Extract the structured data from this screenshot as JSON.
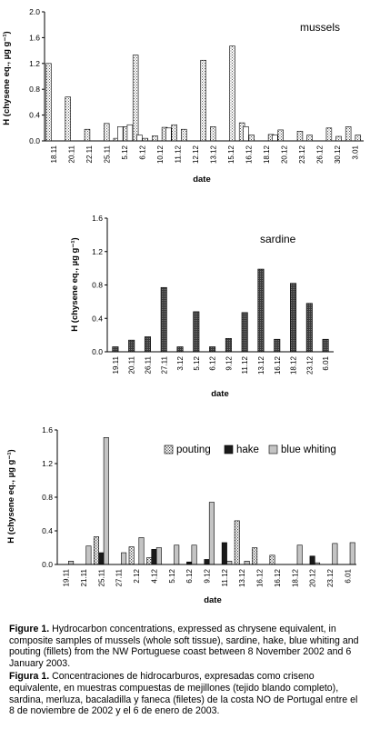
{
  "colors": {
    "background": "#ffffff",
    "axis": "#000000",
    "bar_stroke": "#000000"
  },
  "chart_data": [
    {
      "type": "bar",
      "title": "mussels",
      "xlabel": "date",
      "ylabel": "H (chysene eq., µg g⁻¹)",
      "ylim": [
        0,
        2.0
      ],
      "yticks": [
        "0.0",
        "0.4",
        "0.8",
        "1.2",
        "1.6",
        "2.0"
      ],
      "ytick_values": [
        0,
        0.4,
        0.8,
        1.2,
        1.6,
        2.0
      ],
      "xtick_labels": [
        "18.11",
        "20.11",
        "22.11",
        "25.11",
        "5.12",
        "6.12",
        "10.12",
        "11.12",
        "12.12",
        "13.12",
        "15.12",
        "16.12",
        "18.12",
        "20.12",
        "23.12",
        "26.12",
        "30.12",
        "3.01"
      ],
      "series": [
        {
          "fill": "dots",
          "values": [
            1.2,
            0,
            0.68,
            0,
            0.18,
            0,
            0.27,
            0.04,
            0.22,
            1.33,
            0.04,
            0.08,
            0.21,
            0.25,
            0.18,
            0,
            1.25,
            0.22,
            0,
            1.47,
            0.28,
            0.09,
            0,
            0.1,
            0.17,
            0,
            0.15,
            0.09,
            0,
            0.2,
            0.07,
            0.22,
            0.09
          ]
        },
        {
          "fill": "white",
          "values": [
            0,
            0,
            0,
            0,
            0,
            0,
            0,
            0.22,
            0.25,
            0.09,
            0,
            0,
            0.2,
            0,
            0,
            0,
            0,
            0,
            0,
            0,
            0.22,
            0,
            0,
            0.09,
            0,
            0,
            0,
            0,
            0,
            0,
            0,
            0,
            0
          ]
        }
      ]
    },
    {
      "type": "bar",
      "title": "sardine",
      "xlabel": "date",
      "ylabel": "H (chysene eq., µg g⁻¹)",
      "ylim": [
        0,
        1.6
      ],
      "yticks": [
        "0.0",
        "0.4",
        "0.8",
        "1.2",
        "1.6"
      ],
      "ytick_values": [
        0,
        0.4,
        0.8,
        1.2,
        1.6
      ],
      "categories": [
        "19.11",
        "20.11",
        "26.11",
        "27.11",
        "3.12",
        "5.12",
        "6.12",
        "9.12",
        "11.12",
        "13.12",
        "16.12",
        "18.12",
        "23.12",
        "6.01"
      ],
      "values": [
        0.06,
        0.14,
        0.18,
        0.77,
        0.06,
        0.48,
        0.06,
        0.16,
        0.47,
        0.99,
        0.15,
        0.82,
        0.58,
        0.15
      ]
    },
    {
      "type": "bar",
      "xlabel": "date",
      "ylabel": "H (chysene eq., µg g⁻¹)",
      "ylim": [
        0,
        1.6
      ],
      "yticks": [
        "0.0",
        "0.4",
        "0.8",
        "1.2",
        "1.6"
      ],
      "ytick_values": [
        0,
        0.4,
        0.8,
        1.2,
        1.6
      ],
      "categories": [
        "19.11",
        "21.11",
        "25.11",
        "27.11",
        "2.12",
        "4.12",
        "5.12",
        "6.12",
        "9.12",
        "11.12",
        "13.12",
        "16.12",
        "16.12",
        "18.12",
        "20.12",
        "23.12",
        "6.01"
      ],
      "legend_position": "top-right",
      "series": [
        {
          "name": "pouting",
          "fill": "pouting",
          "values": [
            0,
            0,
            0.33,
            0,
            0.21,
            0.08,
            0,
            0,
            0,
            0,
            0.52,
            0.2,
            0.11,
            0,
            0,
            0,
            0
          ]
        },
        {
          "name": "hake",
          "fill": "hake",
          "values": [
            0,
            0,
            0.14,
            0,
            0,
            0.18,
            0,
            0.03,
            0.06,
            0.26,
            0,
            0,
            0,
            0,
            0.1,
            0,
            0
          ]
        },
        {
          "name": "blue whiting",
          "fill": "bluewhiting",
          "values": [
            0.04,
            0.22,
            1.51,
            0.14,
            0.32,
            0.2,
            0.23,
            0.23,
            0.74,
            0.04,
            0.04,
            0,
            0,
            0.23,
            0.02,
            0.25,
            0.26
          ]
        }
      ],
      "plot_order": [
        {
          "s": 2,
          "i": 0
        },
        {
          "s": 2,
          "i": 1
        },
        {
          "s": 0,
          "i": 2
        },
        {
          "s": 1,
          "i": 2
        },
        {
          "s": 2,
          "i": 2
        },
        {
          "s": 2,
          "i": 3
        },
        {
          "s": 2,
          "i": 4
        },
        {
          "s": 0,
          "i": 4
        },
        {
          "s": 2,
          "i": 4,
          "v": 0.2
        },
        {
          "s": 0,
          "i": 5
        },
        {
          "s": 1,
          "i": 5
        },
        {
          "s": 2,
          "i": 5
        },
        {
          "s": 2,
          "i": 6
        },
        {
          "s": 1,
          "i": 7
        },
        {
          "s": 2,
          "i": 7
        },
        {
          "s": 1,
          "i": 8
        },
        {
          "s": 2,
          "i": 8
        },
        {
          "s": 2,
          "i": 9
        },
        {
          "s": 1,
          "i": 9
        },
        {
          "s": 0,
          "i": 10
        },
        {
          "s": 2,
          "i": 10
        },
        {
          "s": 0,
          "i": 11
        },
        {
          "s": 0,
          "i": 12
        },
        {
          "s": 2,
          "i": 13
        },
        {
          "s": 2,
          "i": 14
        },
        {
          "s": 1,
          "i": 14
        },
        {
          "s": 2,
          "i": 15
        },
        {
          "s": 2,
          "i": 16
        }
      ]
    }
  ],
  "caption": {
    "en_label": "Figure 1.",
    "en_text": "Hydrocarbon concentrations, expressed as chrysene equivalent, in composite samples of mussels (whole soft tissue), sardine, hake, blue whiting and pouting (fillets) from the NW Portuguese coast between 8 November 2002 and 6 January 2003.",
    "es_label": "Figura 1.",
    "es_text": "Concentraciones de hidrocarburos, expresadas como criseno equivalente, en muestras compuestas de mejillones (tejido blando completo), sardina, merluza, bacaladilla y faneca (filetes) de la costa NO de Portugal entre el 8 de noviembre de 2002 y el 6 de enero de 2003."
  }
}
